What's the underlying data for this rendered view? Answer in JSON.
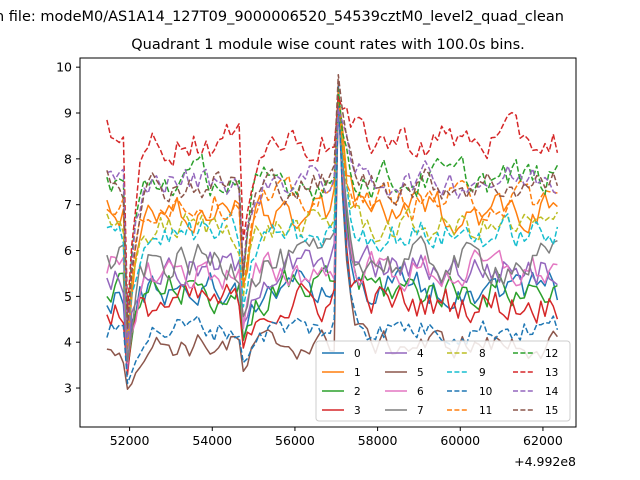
{
  "chart_data": {
    "type": "line",
    "suptitle": "n file: modeM0/AS1A14_127T09_9000006520_54539cztM0_level2_quad_clean",
    "title": "Quadrant 1 module wise count rates with 100.0s bins.",
    "xlabel": "",
    "ylabel": "",
    "x_offset_label": "+4.992e8",
    "xlim": [
      50800,
      62800
    ],
    "ylim": [
      2.15,
      10.2
    ],
    "x_ticks": [
      52000,
      54000,
      56000,
      58000,
      60000,
      62000
    ],
    "x_tick_labels": [
      "52000",
      "54000",
      "56000",
      "58000",
      "60000",
      "62000"
    ],
    "y_ticks": [
      3,
      4,
      5,
      6,
      7,
      8,
      9,
      10
    ],
    "y_tick_labels": [
      "3",
      "4",
      "5",
      "6",
      "7",
      "8",
      "9",
      "10"
    ],
    "x_start": 51450,
    "x_step": 100,
    "n_points": 110,
    "legend": {
      "location": "lower-right",
      "columns": 4
    },
    "features": [
      {
        "x": 51950,
        "depth": 0.6
      },
      {
        "x": 54750,
        "depth": 0.35
      },
      {
        "x": 57050,
        "depth": -0.55
      }
    ],
    "series": [
      {
        "name": "0",
        "style": "solid",
        "color": "#1f77b4",
        "mean": 5.2,
        "noise": 0.35,
        "start": 4.8
      },
      {
        "name": "1",
        "style": "solid",
        "color": "#ff7f0e",
        "mean": 6.85,
        "noise": 0.35,
        "start": 7.1
      },
      {
        "name": "2",
        "style": "solid",
        "color": "#2ca02c",
        "mean": 5.15,
        "noise": 0.35,
        "start": 5.0
      },
      {
        "name": "3",
        "style": "solid",
        "color": "#d62728",
        "mean": 4.85,
        "noise": 0.35,
        "start": 4.6
      },
      {
        "name": "4",
        "style": "solid",
        "color": "#9467bd",
        "mean": 5.6,
        "noise": 0.35,
        "start": 5.4
      },
      {
        "name": "5",
        "style": "solid",
        "color": "#8c564b",
        "mean": 3.95,
        "noise": 0.25,
        "start": 3.85
      },
      {
        "name": "6",
        "style": "solid",
        "color": "#e377c2",
        "mean": 5.55,
        "noise": 0.35,
        "start": 5.5
      },
      {
        "name": "7",
        "style": "solid",
        "color": "#7f7f7f",
        "mean": 5.75,
        "noise": 0.35,
        "start": 5.9
      },
      {
        "name": "8",
        "style": "dashed",
        "color": "#bcbd22",
        "mean": 6.5,
        "noise": 0.3,
        "start": 6.8
      },
      {
        "name": "9",
        "style": "dashed",
        "color": "#17becf",
        "mean": 6.35,
        "noise": 0.3,
        "start": 6.5
      },
      {
        "name": "10",
        "style": "dashed",
        "color": "#1f77b4",
        "mean": 4.3,
        "noise": 0.25,
        "start": 4.1
      },
      {
        "name": "11",
        "style": "dashed",
        "color": "#ff7f0e",
        "mean": 7.1,
        "noise": 0.3,
        "start": 6.9
      },
      {
        "name": "12",
        "style": "dashed",
        "color": "#2ca02c",
        "mean": 7.55,
        "noise": 0.35,
        "start": 7.6
      },
      {
        "name": "13",
        "style": "dashed",
        "color": "#d62728",
        "mean": 8.4,
        "noise": 0.35,
        "start": 8.85
      },
      {
        "name": "14",
        "style": "dashed",
        "color": "#9467bd",
        "mean": 7.55,
        "noise": 0.3,
        "start": 7.7
      },
      {
        "name": "15",
        "style": "dashed",
        "color": "#8c564b",
        "mean": 7.45,
        "noise": 0.3,
        "start": 7.75
      }
    ]
  }
}
